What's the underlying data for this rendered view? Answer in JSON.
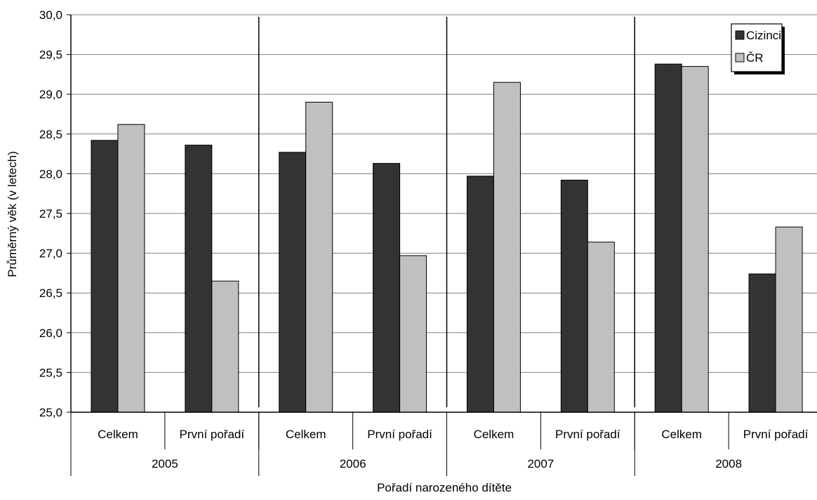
{
  "chart_data": {
    "type": "bar",
    "ylabel": "Průměrný věk (v letech)",
    "xlabel": "Pořadí narozeného dítěte",
    "ylim": [
      25.0,
      30.0
    ],
    "ytick_step": 0.5,
    "ytick_labels": [
      "25,0",
      "25,5",
      "26,0",
      "26,5",
      "27,0",
      "27,5",
      "28,0",
      "28,5",
      "29,0",
      "29,5",
      "30,0"
    ],
    "grid": true,
    "legend_position": "top-right",
    "groups": [
      "2005",
      "2006",
      "2007",
      "2008"
    ],
    "categories": [
      "Celkem",
      "První pořadí",
      "Celkem",
      "První pořadí",
      "Celkem",
      "První pořadí",
      "Celkem",
      "První pořadí"
    ],
    "category_group": [
      0,
      0,
      1,
      1,
      2,
      2,
      3,
      3
    ],
    "series": [
      {
        "name": "Cizinci",
        "color": "#333333",
        "values": [
          28.42,
          28.36,
          28.27,
          28.13,
          27.97,
          27.92,
          29.38,
          26.74
        ]
      },
      {
        "name": "ČR",
        "color": "#c0c0c0",
        "values": [
          28.62,
          26.65,
          28.9,
          26.97,
          29.15,
          27.14,
          29.35,
          27.33
        ]
      }
    ]
  }
}
